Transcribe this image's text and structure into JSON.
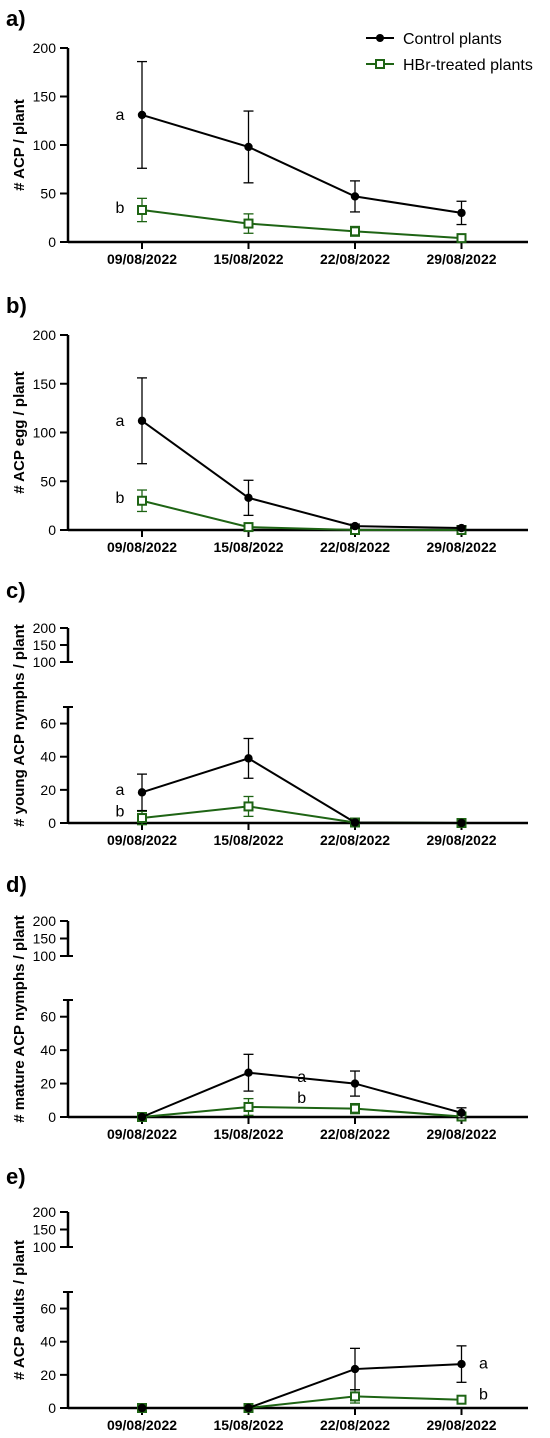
{
  "legend": {
    "control": "Control plants",
    "treated": "HBr-treated plants"
  },
  "colors": {
    "control": "#000000",
    "treated": "#1e6414"
  },
  "chart_data": [
    {
      "type": "line",
      "panel": "a)",
      "ylabel": "# ACP / plant",
      "categories": [
        "09/08/2022",
        "15/08/2022",
        "22/08/2022",
        "29/08/2022"
      ],
      "yticks": [
        0,
        50,
        100,
        150,
        200
      ],
      "ylim": [
        0,
        200
      ],
      "series": [
        {
          "name": "Control plants",
          "values": [
            131,
            98,
            47,
            30
          ],
          "err": [
            55,
            37,
            16,
            12
          ]
        },
        {
          "name": "HBr-treated plants",
          "values": [
            33,
            19,
            11,
            4
          ],
          "err": [
            12,
            10,
            5,
            2
          ]
        }
      ],
      "annotations": [
        {
          "text": "a",
          "x": 0,
          "y": 131,
          "side": "left"
        },
        {
          "text": "b",
          "x": 0,
          "y": 35,
          "side": "left"
        }
      ]
    },
    {
      "type": "line",
      "panel": "b)",
      "ylabel": "# ACP egg / plant",
      "categories": [
        "09/08/2022",
        "15/08/2022",
        "22/08/2022",
        "29/08/2022"
      ],
      "yticks": [
        0,
        50,
        100,
        150,
        200
      ],
      "ylim": [
        0,
        200
      ],
      "series": [
        {
          "name": "Control plants",
          "values": [
            112,
            33,
            4,
            2
          ],
          "err": [
            44,
            18,
            2,
            2
          ]
        },
        {
          "name": "HBr-treated plants",
          "values": [
            30,
            3,
            0,
            0
          ],
          "err": [
            11,
            3,
            0,
            0
          ]
        }
      ],
      "annotations": [
        {
          "text": "a",
          "x": 0,
          "y": 112,
          "side": "left"
        },
        {
          "text": "b",
          "x": 0,
          "y": 33,
          "side": "left"
        }
      ]
    },
    {
      "type": "line",
      "panel": "c)",
      "ylabel": "# young ACP nymphs / plant",
      "categories": [
        "09/08/2022",
        "15/08/2022",
        "22/08/2022",
        "29/08/2022"
      ],
      "yticks": [
        0,
        20,
        40,
        60
      ],
      "ylim": [
        0,
        70
      ],
      "upper_ticks": [
        100,
        150,
        200
      ],
      "series": [
        {
          "name": "Control plants",
          "values": [
            18.5,
            39,
            0.3,
            0
          ],
          "err": [
            11,
            12,
            0,
            0
          ]
        },
        {
          "name": "HBr-treated plants",
          "values": [
            3,
            10,
            0.3,
            0
          ],
          "err": [
            4,
            6,
            0,
            0
          ]
        }
      ],
      "annotations": [
        {
          "text": "a",
          "x": 0,
          "y": 20,
          "side": "left"
        },
        {
          "text": "b",
          "x": 0,
          "y": 7,
          "side": "left"
        }
      ]
    },
    {
      "type": "line",
      "panel": "d)",
      "ylabel": "# mature ACP nymphs / plant",
      "categories": [
        "09/08/2022",
        "15/08/2022",
        "22/08/2022",
        "29/08/2022"
      ],
      "yticks": [
        0,
        20,
        40,
        60
      ],
      "ylim": [
        0,
        70
      ],
      "upper_ticks": [
        100,
        150,
        200
      ],
      "series": [
        {
          "name": "Control plants",
          "values": [
            0,
            26.5,
            20,
            2.5
          ],
          "err": [
            0,
            11,
            7.5,
            3
          ]
        },
        {
          "name": "HBr-treated plants",
          "values": [
            0,
            6,
            5,
            0.3
          ],
          "err": [
            0,
            5,
            3,
            0.5
          ]
        }
      ],
      "annotations": [
        {
          "text": "a",
          "x": 1.5,
          "y": 24,
          "side": "center"
        },
        {
          "text": "b",
          "x": 1.5,
          "y": 11.5,
          "side": "center"
        }
      ]
    },
    {
      "type": "line",
      "panel": "e)",
      "ylabel": "# ACP adults / plant",
      "categories": [
        "09/08/2022",
        "15/08/2022",
        "22/08/2022",
        "29/08/2022"
      ],
      "yticks": [
        0,
        20,
        40,
        60
      ],
      "ylim": [
        0,
        70
      ],
      "upper_ticks": [
        100,
        150,
        200
      ],
      "series": [
        {
          "name": "Control plants",
          "values": [
            0,
            0,
            23.5,
            26.5
          ],
          "err": [
            0,
            0,
            12.5,
            11
          ]
        },
        {
          "name": "HBr-treated plants",
          "values": [
            0,
            0,
            7,
            5
          ],
          "err": [
            0,
            0,
            4,
            2
          ]
        }
      ],
      "annotations": [
        {
          "text": "a",
          "x": 3,
          "y": 27,
          "side": "right"
        },
        {
          "text": "b",
          "x": 3,
          "y": 8,
          "side": "right"
        }
      ]
    }
  ]
}
